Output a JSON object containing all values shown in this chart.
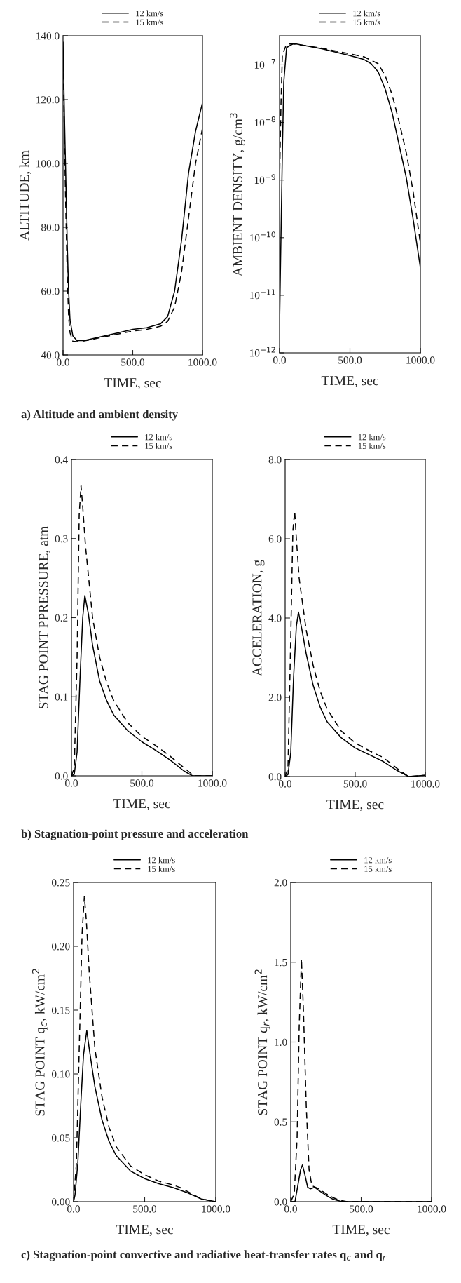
{
  "chart_data": [
    {
      "type": "line",
      "xlabel": "TIME, sec",
      "ylabel": "ALTITUDE, km",
      "xlim": [
        0,
        1000
      ],
      "xticks": [
        {
          "value": 0,
          "label": "0.0"
        },
        {
          "value": 500,
          "label": "500.0"
        },
        {
          "value": 1000,
          "label": "1000.0"
        }
      ],
      "ylim": [
        40,
        140
      ],
      "yticks": [
        {
          "value": 40,
          "label": "40.0"
        },
        {
          "value": 60,
          "label": "60.0"
        },
        {
          "value": 80,
          "label": "80.0"
        },
        {
          "value": 100,
          "label": "100.0"
        },
        {
          "value": 120,
          "label": "120.0"
        },
        {
          "value": 140,
          "label": "140.0"
        }
      ],
      "legend": "top",
      "grid": false,
      "annotations": [
        "a) Altitude and ambient density"
      ],
      "series": [
        {
          "name": "12 km/s",
          "color": "#000000",
          "line_style": "solid",
          "x": [
            0,
            10,
            20,
            30,
            40,
            50,
            70,
            100,
            150,
            200,
            300,
            400,
            500,
            600,
            700,
            750,
            800,
            850,
            900,
            950,
            1000
          ],
          "values": [
            138,
            115,
            95,
            75,
            60,
            51,
            46,
            44.5,
            44.5,
            45,
            46,
            47,
            48,
            48.5,
            49.8,
            52,
            60,
            76,
            97,
            110,
            119
          ]
        },
        {
          "name": "15 km/s",
          "color": "#000000",
          "line_style": "dashed",
          "x": [
            0,
            10,
            20,
            30,
            40,
            50,
            70,
            100,
            150,
            200,
            300,
            400,
            500,
            600,
            700,
            750,
            800,
            850,
            900,
            950,
            1000
          ],
          "values": [
            135,
            108,
            85,
            65,
            52,
            47,
            44.3,
            44.2,
            44.4,
            44.8,
            45.7,
            46.6,
            47.5,
            48,
            49,
            50.5,
            55,
            66,
            83,
            100,
            111
          ]
        }
      ]
    },
    {
      "type": "line",
      "xlabel": "TIME, sec",
      "ylabel": "AMBIENT DENSITY, g/cm$^{3}$",
      "xlim": [
        0,
        1000
      ],
      "xticks": [
        {
          "value": 0,
          "label": "0.0"
        },
        {
          "value": 500,
          "label": "500.0"
        },
        {
          "value": 1000,
          "label": "1000.0"
        }
      ],
      "log": "y",
      "ylim": [
        1e-12,
        3.2e-07
      ],
      "yticks": [
        {
          "value": 1e-12,
          "label": "10$^{−12}$"
        },
        {
          "value": 1e-11,
          "label": "10$^{−11}$"
        },
        {
          "value": 1e-10,
          "label": "10$^{−10}$"
        },
        {
          "value": 1e-09,
          "label": "10$^{−9}$"
        },
        {
          "value": 1e-08,
          "label": "10$^{−8}$"
        },
        {
          "value": 1e-07,
          "label": "10$^{−7}$"
        }
      ],
      "legend": "top",
      "grid": false,
      "series": [
        {
          "name": "12 km/s",
          "color": "#000000",
          "line_style": "solid",
          "x": [
            0,
            10,
            20,
            30,
            50,
            100,
            300,
            500,
            600,
            650,
            700,
            750,
            800,
            850,
            900,
            950,
            1000
          ],
          "values": [
            3e-12,
            1e-10,
            3e-09,
            5e-08,
            2e-07,
            2.35e-07,
            1.9e-07,
            1.45e-07,
            1.24e-07,
            1.05e-07,
            7.6e-08,
            3.8e-08,
            1.45e-08,
            4e-09,
            1.1e-09,
            2e-10,
            3e-11
          ]
        },
        {
          "name": "15 km/s",
          "color": "#000000",
          "line_style": "dashed",
          "x": [
            0,
            10,
            20,
            50,
            100,
            300,
            500,
            600,
            700,
            750,
            800,
            850,
            900,
            950,
            1000
          ],
          "values": [
            1e-09,
            2e-08,
            1.5e-07,
            2.3e-07,
            2.3e-07,
            1.95e-07,
            1.55e-07,
            1.38e-07,
            1.05e-07,
            6.5e-08,
            3e-08,
            1e-08,
            3e-09,
            6e-10,
            8e-11
          ]
        }
      ]
    },
    {
      "type": "line",
      "xlabel": "TIME, sec",
      "ylabel": "STAG POINT PPRESSURE, atm",
      "xlim": [
        0,
        1000
      ],
      "xticks": [
        {
          "value": 0,
          "label": "0.0"
        },
        {
          "value": 500,
          "label": "500.0"
        },
        {
          "value": 1000,
          "label": "1000.0"
        }
      ],
      "ylim": [
        0,
        0.4
      ],
      "yticks": [
        {
          "value": 0,
          "label": "0.0"
        },
        0.1,
        0.2,
        0.3,
        0.4
      ],
      "legend": "top",
      "grid": false,
      "annotations": [
        "b) Stagnation-point pressure and acceleration"
      ],
      "series": [
        {
          "name": "12 km/s",
          "color": "#000000",
          "line_style": "solid",
          "x": [
            0,
            20,
            40,
            60,
            80,
            95,
            120,
            150,
            200,
            250,
            300,
            400,
            500,
            600,
            700,
            800,
            860,
            1000
          ],
          "values": [
            0,
            0.002,
            0.03,
            0.12,
            0.2,
            0.228,
            0.205,
            0.165,
            0.12,
            0.095,
            0.077,
            0.057,
            0.043,
            0.032,
            0.02,
            0.006,
            0.0,
            0.0
          ]
        },
        {
          "name": "15 km/s",
          "color": "#000000",
          "line_style": "dashed",
          "x": [
            0,
            20,
            40,
            55,
            68,
            80,
            100,
            150,
            200,
            250,
            300,
            400,
            500,
            600,
            700,
            800,
            870,
            1000
          ],
          "values": [
            0,
            0.01,
            0.15,
            0.33,
            0.367,
            0.34,
            0.29,
            0.2,
            0.15,
            0.118,
            0.095,
            0.067,
            0.05,
            0.038,
            0.025,
            0.01,
            0.0,
            0.0
          ]
        }
      ]
    },
    {
      "type": "line",
      "xlabel": "TIME, sec",
      "ylabel": "ACCELERATION, g",
      "xlim": [
        0,
        1000
      ],
      "xticks": [
        {
          "value": 0,
          "label": "0.0"
        },
        {
          "value": 500,
          "label": "500.0"
        },
        {
          "value": 1000,
          "label": "1000.0"
        }
      ],
      "ylim": [
        0,
        8
      ],
      "yticks": [
        {
          "value": 0,
          "label": "0.0"
        },
        {
          "value": 2,
          "label": "2.0"
        },
        {
          "value": 4,
          "label": "4.0"
        },
        {
          "value": 6,
          "label": "6.0"
        },
        {
          "value": 8,
          "label": "8.0"
        }
      ],
      "legend": "top",
      "grid": false,
      "series": [
        {
          "name": "12 km/s",
          "color": "#000000",
          "line_style": "solid",
          "x": [
            0,
            20,
            40,
            60,
            80,
            95,
            120,
            150,
            200,
            250,
            300,
            400,
            500,
            600,
            700,
            800,
            880,
            1000
          ],
          "values": [
            0,
            0.05,
            0.6,
            2.5,
            3.8,
            4.15,
            3.7,
            3.1,
            2.3,
            1.75,
            1.38,
            0.98,
            0.72,
            0.55,
            0.38,
            0.15,
            0.0,
            0.03
          ]
        },
        {
          "name": "15 km/s",
          "color": "#000000",
          "line_style": "dashed",
          "x": [
            0,
            20,
            40,
            55,
            68,
            80,
            100,
            150,
            200,
            250,
            300,
            400,
            500,
            600,
            700,
            800,
            880,
            1000
          ],
          "values": [
            0,
            0.2,
            3.5,
            6.2,
            6.7,
            6.0,
            5.0,
            3.7,
            2.8,
            2.15,
            1.7,
            1.15,
            0.85,
            0.65,
            0.48,
            0.2,
            0.0,
            0.03
          ]
        }
      ]
    },
    {
      "type": "line",
      "xlabel": "TIME, sec",
      "ylabel": "STAG POINT q$_{c}$, kW/cm$^{2}$",
      "xlim": [
        0,
        1000
      ],
      "xticks": [
        {
          "value": 0,
          "label": "0.0"
        },
        {
          "value": 500,
          "label": "500.0"
        },
        {
          "value": 1000,
          "label": "1000.0"
        }
      ],
      "ylim": [
        0,
        0.25
      ],
      "yticks": [
        {
          "value": 0,
          "label": "0.00"
        },
        0.05,
        {
          "value": 0.1,
          "label": "0.10"
        },
        0.15,
        {
          "value": 0.2,
          "label": "0.20"
        },
        0.25
      ],
      "legend": "top",
      "grid": false,
      "annotations": [
        "c) Stagnation-point convective and radiative heat-transfer rates q$_{c}$ and q$_{r}$"
      ],
      "series": [
        {
          "name": "12 km/s",
          "color": "#000000",
          "line_style": "solid",
          "x": [
            0,
            10,
            30,
            50,
            70,
            93,
            110,
            150,
            200,
            250,
            300,
            400,
            500,
            600,
            700,
            800,
            900,
            1000
          ],
          "values": [
            0,
            0.005,
            0.03,
            0.075,
            0.115,
            0.134,
            0.12,
            0.09,
            0.064,
            0.047,
            0.036,
            0.024,
            0.018,
            0.014,
            0.011,
            0.007,
            0.002,
            0.0
          ]
        },
        {
          "name": "15 km/s",
          "color": "#000000",
          "line_style": "dashed",
          "x": [
            0,
            20,
            40,
            60,
            76,
            90,
            110,
            150,
            200,
            250,
            300,
            400,
            500,
            600,
            700,
            750,
            800,
            900,
            1000
          ],
          "values": [
            0,
            0.03,
            0.12,
            0.21,
            0.239,
            0.22,
            0.18,
            0.12,
            0.082,
            0.058,
            0.043,
            0.028,
            0.021,
            0.016,
            0.013,
            0.011,
            0.008,
            0.002,
            0.0
          ]
        }
      ]
    },
    {
      "type": "line",
      "xlabel": "TIME, sec",
      "ylabel": "STAG POINT q$_{r}$, kW/cm$^{2}$",
      "xlim": [
        0,
        1000
      ],
      "xticks": [
        {
          "value": 0,
          "label": "0.0"
        },
        {
          "value": 500,
          "label": "500.0"
        },
        {
          "value": 1000,
          "label": "1000.0"
        }
      ],
      "ylim": [
        0,
        2
      ],
      "yticks": [
        {
          "value": 0,
          "label": "0.0"
        },
        0.5,
        {
          "value": 1,
          "label": "1.0"
        },
        1.5,
        {
          "value": 2,
          "label": "2.0"
        }
      ],
      "legend": "top",
      "grid": false,
      "series": [
        {
          "name": "12 km/s",
          "color": "#000000",
          "line_style": "solid",
          "x": [
            0,
            30,
            50,
            70,
            83,
            100,
            120,
            140,
            170,
            200,
            250,
            300,
            350,
            400,
            1000
          ],
          "values": [
            0,
            0.0,
            0.1,
            0.2,
            0.23,
            0.17,
            0.09,
            0.08,
            0.09,
            0.07,
            0.04,
            0.015,
            0.003,
            0.0,
            0.0
          ]
        },
        {
          "name": "15 km/s",
          "color": "#000000",
          "line_style": "dashed",
          "x": [
            0,
            25,
            45,
            60,
            76,
            90,
            110,
            130,
            150,
            200,
            250,
            300,
            350,
            400,
            1000
          ],
          "values": [
            0,
            0.05,
            0.4,
            1.1,
            1.52,
            1.2,
            0.6,
            0.2,
            0.1,
            0.08,
            0.05,
            0.025,
            0.008,
            0.0,
            0.0
          ]
        }
      ]
    }
  ]
}
